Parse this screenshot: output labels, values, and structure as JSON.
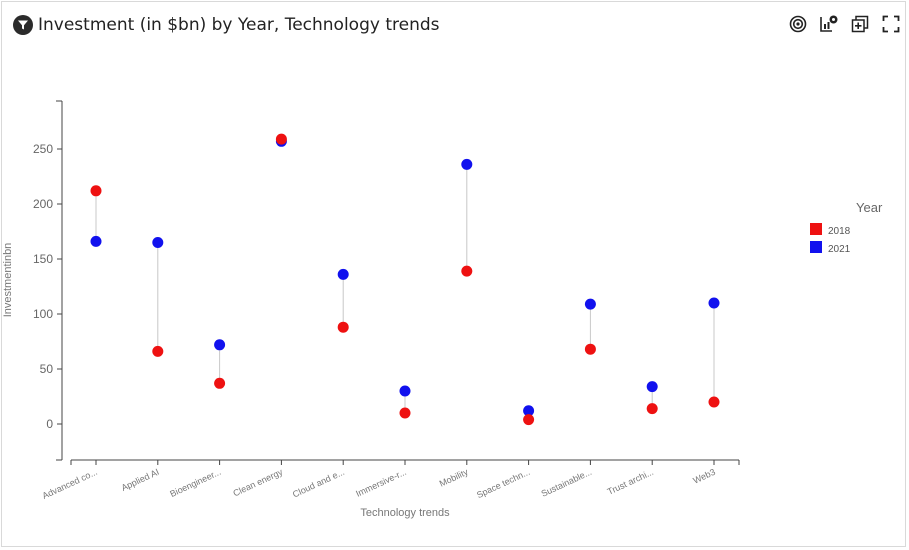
{
  "header": {
    "title": "Investment (in $bn) by Year, Technology trends",
    "filter_icon": "filter-funnel-icon",
    "toolbar_icons": [
      "target-icon",
      "chart-options-icon",
      "add-to-canvas-icon",
      "fullscreen-icon"
    ]
  },
  "chart_data": {
    "type": "scatter",
    "subtype": "dumbbell",
    "xlabel": "Technology trends",
    "ylabel": "Investmentinbn",
    "ylim": [
      -30,
      290
    ],
    "yticks": [
      0,
      50,
      100,
      150,
      200,
      250
    ],
    "categories": [
      "Advanced co...",
      "Applied AI",
      "Bioengineer...",
      "Clean energy",
      "Cloud and e...",
      "Immersive-r...",
      "Mobility",
      "Space techn...",
      "Sustainable...",
      "Trust archi...",
      "Web3"
    ],
    "legend_title": "Year",
    "legend_position": "right",
    "grid": false,
    "series": [
      {
        "name": "2018",
        "color": "#ee1111",
        "values": [
          212,
          66,
          37,
          259,
          88,
          10,
          139,
          4,
          68,
          14,
          20
        ]
      },
      {
        "name": "2021",
        "color": "#1111ee",
        "values": [
          166,
          165,
          72,
          257,
          136,
          30,
          236,
          12,
          109,
          34,
          110
        ]
      }
    ]
  }
}
